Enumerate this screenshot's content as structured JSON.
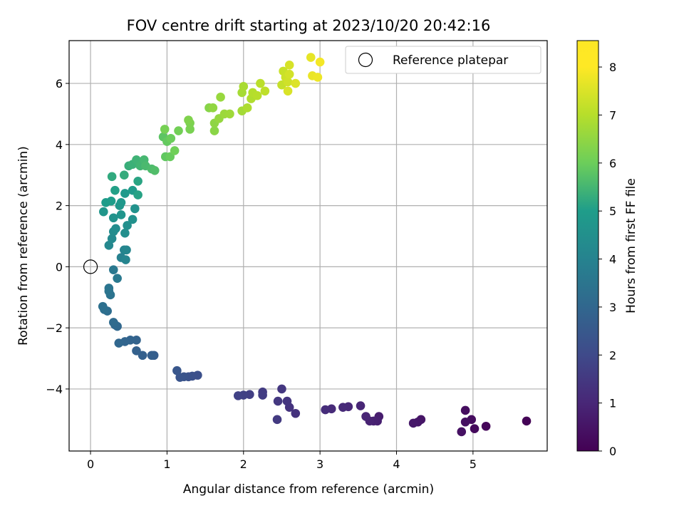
{
  "chart_data": {
    "type": "scatter",
    "title": "FOV centre drift starting at 2023/10/20 20:42:16",
    "xlabel": "Angular distance from reference (arcmin)",
    "ylabel": "Rotation from reference (arcmin)",
    "xlim": [
      -0.28,
      5.97
    ],
    "ylim": [
      -6.03,
      7.4
    ],
    "xticks": [
      0,
      1,
      2,
      3,
      4,
      5
    ],
    "yticks": [
      -4,
      -2,
      0,
      2,
      4,
      6
    ],
    "grid": true,
    "legend": {
      "position": "top-right",
      "entries": [
        {
          "label": "Reference platepar",
          "marker": "open-circle"
        }
      ]
    },
    "reference_point": {
      "x": 0,
      "y": 0
    },
    "colorbar": {
      "label": "Hours from first FF file",
      "colormap": "viridis",
      "range": [
        0,
        8.55
      ],
      "ticks": [
        0,
        1,
        2,
        3,
        4,
        5,
        6,
        7,
        8
      ],
      "colors": [
        "#440154",
        "#482777",
        "#3f4a8a",
        "#31678e",
        "#26838f",
        "#1f9d8a",
        "#6cce5a",
        "#b6de2b",
        "#fee825"
      ]
    },
    "points": [
      [
        5.7,
        -5.05,
        0.05
      ],
      [
        5.17,
        -5.22,
        0.15
      ],
      [
        5.02,
        -5.3,
        0.25
      ],
      [
        4.98,
        -5.0,
        0.3
      ],
      [
        4.9,
        -4.7,
        0.35
      ],
      [
        4.9,
        -5.08,
        0.4
      ],
      [
        4.85,
        -5.4,
        0.45
      ],
      [
        4.32,
        -5.0,
        0.55
      ],
      [
        4.28,
        -5.08,
        0.6
      ],
      [
        4.22,
        -5.12,
        0.65
      ],
      [
        3.77,
        -4.9,
        0.8
      ],
      [
        3.75,
        -5.05,
        0.85
      ],
      [
        3.7,
        -5.05,
        0.9
      ],
      [
        3.65,
        -5.05,
        0.95
      ],
      [
        3.6,
        -4.9,
        1.0
      ],
      [
        3.53,
        -4.55,
        1.05
      ],
      [
        3.37,
        -4.58,
        1.1
      ],
      [
        3.3,
        -4.6,
        1.15
      ],
      [
        3.15,
        -4.65,
        1.2
      ],
      [
        3.07,
        -4.68,
        1.25
      ],
      [
        2.68,
        -4.8,
        1.4
      ],
      [
        2.6,
        -4.6,
        1.45
      ],
      [
        2.57,
        -4.4,
        1.5
      ],
      [
        2.5,
        -4.0,
        1.55
      ],
      [
        2.45,
        -4.4,
        1.6
      ],
      [
        2.44,
        -5.0,
        1.65
      ],
      [
        2.25,
        -4.1,
        1.7
      ],
      [
        2.25,
        -4.2,
        1.75
      ],
      [
        2.08,
        -4.18,
        1.8
      ],
      [
        2.0,
        -4.2,
        1.85
      ],
      [
        1.93,
        -4.22,
        1.9
      ],
      [
        1.4,
        -3.55,
        2.35
      ],
      [
        1.33,
        -3.58,
        2.4
      ],
      [
        1.28,
        -3.6,
        2.45
      ],
      [
        1.22,
        -3.6,
        2.5
      ],
      [
        1.17,
        -3.62,
        2.55
      ],
      [
        1.13,
        -3.4,
        2.6
      ],
      [
        0.83,
        -2.9,
        2.85
      ],
      [
        0.8,
        -2.9,
        2.9
      ],
      [
        0.68,
        -2.9,
        2.95
      ],
      [
        0.6,
        -2.75,
        3.0
      ],
      [
        0.6,
        -2.4,
        3.05
      ],
      [
        0.52,
        -2.4,
        3.1
      ],
      [
        0.45,
        -2.45,
        3.15
      ],
      [
        0.37,
        -2.5,
        3.2
      ],
      [
        0.35,
        -1.95,
        3.25
      ],
      [
        0.32,
        -1.9,
        3.3
      ],
      [
        0.3,
        -1.82,
        3.35
      ],
      [
        0.22,
        -1.45,
        3.45
      ],
      [
        0.18,
        -1.4,
        3.5
      ],
      [
        0.16,
        -1.3,
        3.55
      ],
      [
        0.26,
        -0.92,
        3.65
      ],
      [
        0.24,
        -0.8,
        3.7
      ],
      [
        0.24,
        -0.7,
        3.75
      ],
      [
        0.3,
        -0.1,
        3.85
      ],
      [
        0.35,
        -0.38,
        3.9
      ],
      [
        0.4,
        0.3,
        4.2
      ],
      [
        0.44,
        0.55,
        4.3
      ],
      [
        0.46,
        0.23,
        4.35
      ],
      [
        0.47,
        0.55,
        4.4
      ],
      [
        0.24,
        0.7,
        4.5
      ],
      [
        0.28,
        0.92,
        4.55
      ],
      [
        0.3,
        1.15,
        4.65
      ],
      [
        0.33,
        1.25,
        4.7
      ],
      [
        0.45,
        1.1,
        4.75
      ],
      [
        0.48,
        1.35,
        4.8
      ],
      [
        0.55,
        1.55,
        4.85
      ],
      [
        0.58,
        1.9,
        4.9
      ],
      [
        0.3,
        1.6,
        4.95
      ],
      [
        0.4,
        1.7,
        5.0
      ],
      [
        0.17,
        1.8,
        5.05
      ],
      [
        0.38,
        2.0,
        5.1
      ],
      [
        0.4,
        2.1,
        5.15
      ],
      [
        0.45,
        2.4,
        5.2
      ],
      [
        0.55,
        2.5,
        5.25
      ],
      [
        0.2,
        2.1,
        5.3
      ],
      [
        0.27,
        2.15,
        5.35
      ],
      [
        0.32,
        2.5,
        5.4
      ],
      [
        0.62,
        2.35,
        5.45
      ],
      [
        0.62,
        2.8,
        5.5
      ],
      [
        0.28,
        2.95,
        5.6
      ],
      [
        0.44,
        3.0,
        5.65
      ],
      [
        0.5,
        3.3,
        5.7
      ],
      [
        0.55,
        3.35,
        5.75
      ],
      [
        0.6,
        3.5,
        5.8
      ],
      [
        0.65,
        3.3,
        5.85
      ],
      [
        0.7,
        3.5,
        5.9
      ],
      [
        0.72,
        3.3,
        5.95
      ],
      [
        0.8,
        3.2,
        6.0
      ],
      [
        0.84,
        3.15,
        6.05
      ],
      [
        0.95,
        4.25,
        6.2
      ],
      [
        0.98,
        3.6,
        6.25
      ],
      [
        1.0,
        4.1,
        6.3
      ],
      [
        1.04,
        3.6,
        6.35
      ],
      [
        1.05,
        4.2,
        6.4
      ],
      [
        1.1,
        3.8,
        6.45
      ],
      [
        1.15,
        4.45,
        6.5
      ],
      [
        0.97,
        4.5,
        6.55
      ],
      [
        1.3,
        4.5,
        6.6
      ],
      [
        1.3,
        4.7,
        6.65
      ],
      [
        1.28,
        4.8,
        6.7
      ],
      [
        1.55,
        5.2,
        6.8
      ],
      [
        1.62,
        4.45,
        6.85
      ],
      [
        1.62,
        4.7,
        6.9
      ],
      [
        1.6,
        5.2,
        6.95
      ],
      [
        1.68,
        4.85,
        7.0
      ],
      [
        1.7,
        5.55,
        7.05
      ],
      [
        1.75,
        5.0,
        7.1
      ],
      [
        1.82,
        5.0,
        7.15
      ],
      [
        1.98,
        5.1,
        7.2
      ],
      [
        1.98,
        5.7,
        7.25
      ],
      [
        2.0,
        5.9,
        7.3
      ],
      [
        2.05,
        5.2,
        7.35
      ],
      [
        2.1,
        5.5,
        7.4
      ],
      [
        2.12,
        5.7,
        7.45
      ],
      [
        2.18,
        5.6,
        7.5
      ],
      [
        2.22,
        6.0,
        7.55
      ],
      [
        2.28,
        5.75,
        7.6
      ],
      [
        2.5,
        5.95,
        7.7
      ],
      [
        2.52,
        6.4,
        7.75
      ],
      [
        2.55,
        6.2,
        7.8
      ],
      [
        2.58,
        6.05,
        7.85
      ],
      [
        2.6,
        6.3,
        7.9
      ],
      [
        2.6,
        6.6,
        7.95
      ],
      [
        2.58,
        5.75,
        8.0
      ],
      [
        2.68,
        6.0,
        8.05
      ],
      [
        2.88,
        6.85,
        8.2
      ],
      [
        2.9,
        6.25,
        8.25
      ],
      [
        2.97,
        6.2,
        8.3
      ],
      [
        3.0,
        6.7,
        8.4
      ]
    ]
  }
}
